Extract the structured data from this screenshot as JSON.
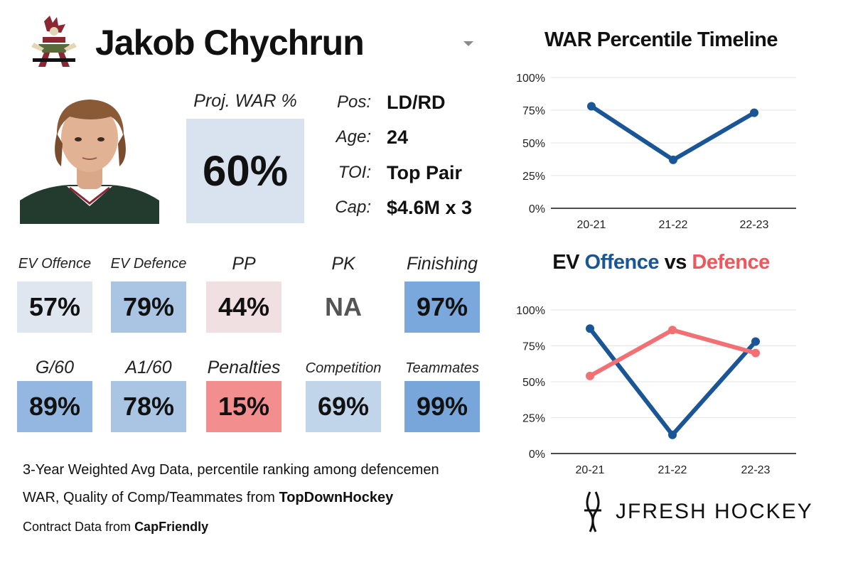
{
  "player": {
    "name": "Jakob Chychrun"
  },
  "projected": {
    "label": "Proj. WAR %",
    "value": "60%",
    "color": "#d9e3ef"
  },
  "info": [
    {
      "label": "Pos:",
      "value": "LD/RD"
    },
    {
      "label": "Age:",
      "value": "24"
    },
    {
      "label": "TOI:",
      "value": "Top Pair"
    },
    {
      "label": "Cap:",
      "value": "$4.6M x 3"
    }
  ],
  "stats": [
    {
      "label": "EV Offence",
      "value": "57%",
      "color": "#dfe6ef"
    },
    {
      "label": "EV Defence",
      "value": "79%",
      "color": "#a9c5e3"
    },
    {
      "label": "PP",
      "value": "44%",
      "color": "#f1e0e1"
    },
    {
      "label": "PK",
      "value": "NA",
      "color": "#ffffff"
    },
    {
      "label": "Finishing",
      "value": "97%",
      "color": "#7aa8dc"
    },
    {
      "label": "G/60",
      "value": "89%",
      "color": "#93b7e0"
    },
    {
      "label": "A1/60",
      "value": "78%",
      "color": "#a9c5e3"
    },
    {
      "label": "Penalties",
      "value": "15%",
      "color": "#f38e8e"
    },
    {
      "label": "Competition",
      "value": "69%",
      "color": "#c1d5ea"
    },
    {
      "label": "Teammates",
      "value": "99%",
      "color": "#78a6da"
    }
  ],
  "footnotes": {
    "line1": "3-Year Weighted Avg Data, percentile ranking among defencemen",
    "line2_prefix": "WAR, Quality of Comp/Teammates from ",
    "line2_source": "TopDownHockey",
    "line3_prefix": "Contract Data from ",
    "line3_source": "CapFriendly"
  },
  "brand": {
    "text": "JFRESH HOCKEY"
  },
  "chart_data": [
    {
      "type": "line",
      "title": "WAR Percentile Timeline",
      "categories": [
        "20-21",
        "21-22",
        "22-23"
      ],
      "yticks": [
        "0%",
        "25%",
        "50%",
        "75%",
        "100%"
      ],
      "ylim": [
        0,
        100
      ],
      "grid": true,
      "series": [
        {
          "values": [
            78,
            37,
            73
          ],
          "color": "#1a5596"
        }
      ]
    },
    {
      "type": "line",
      "title": "EV Offence vs Defence",
      "title_parts": [
        "EV ",
        "Offence",
        " vs ",
        "Defence"
      ],
      "categories": [
        "20-21",
        "21-22",
        "22-23"
      ],
      "yticks": [
        "0%",
        "25%",
        "50%",
        "75%",
        "100%"
      ],
      "ylim": [
        0,
        100
      ],
      "grid": true,
      "series": [
        {
          "name": "Offence",
          "values": [
            87,
            13,
            78
          ],
          "color": "#1a5596"
        },
        {
          "name": "Defence",
          "values": [
            54,
            86,
            70
          ],
          "color": "#f07074"
        }
      ]
    }
  ]
}
